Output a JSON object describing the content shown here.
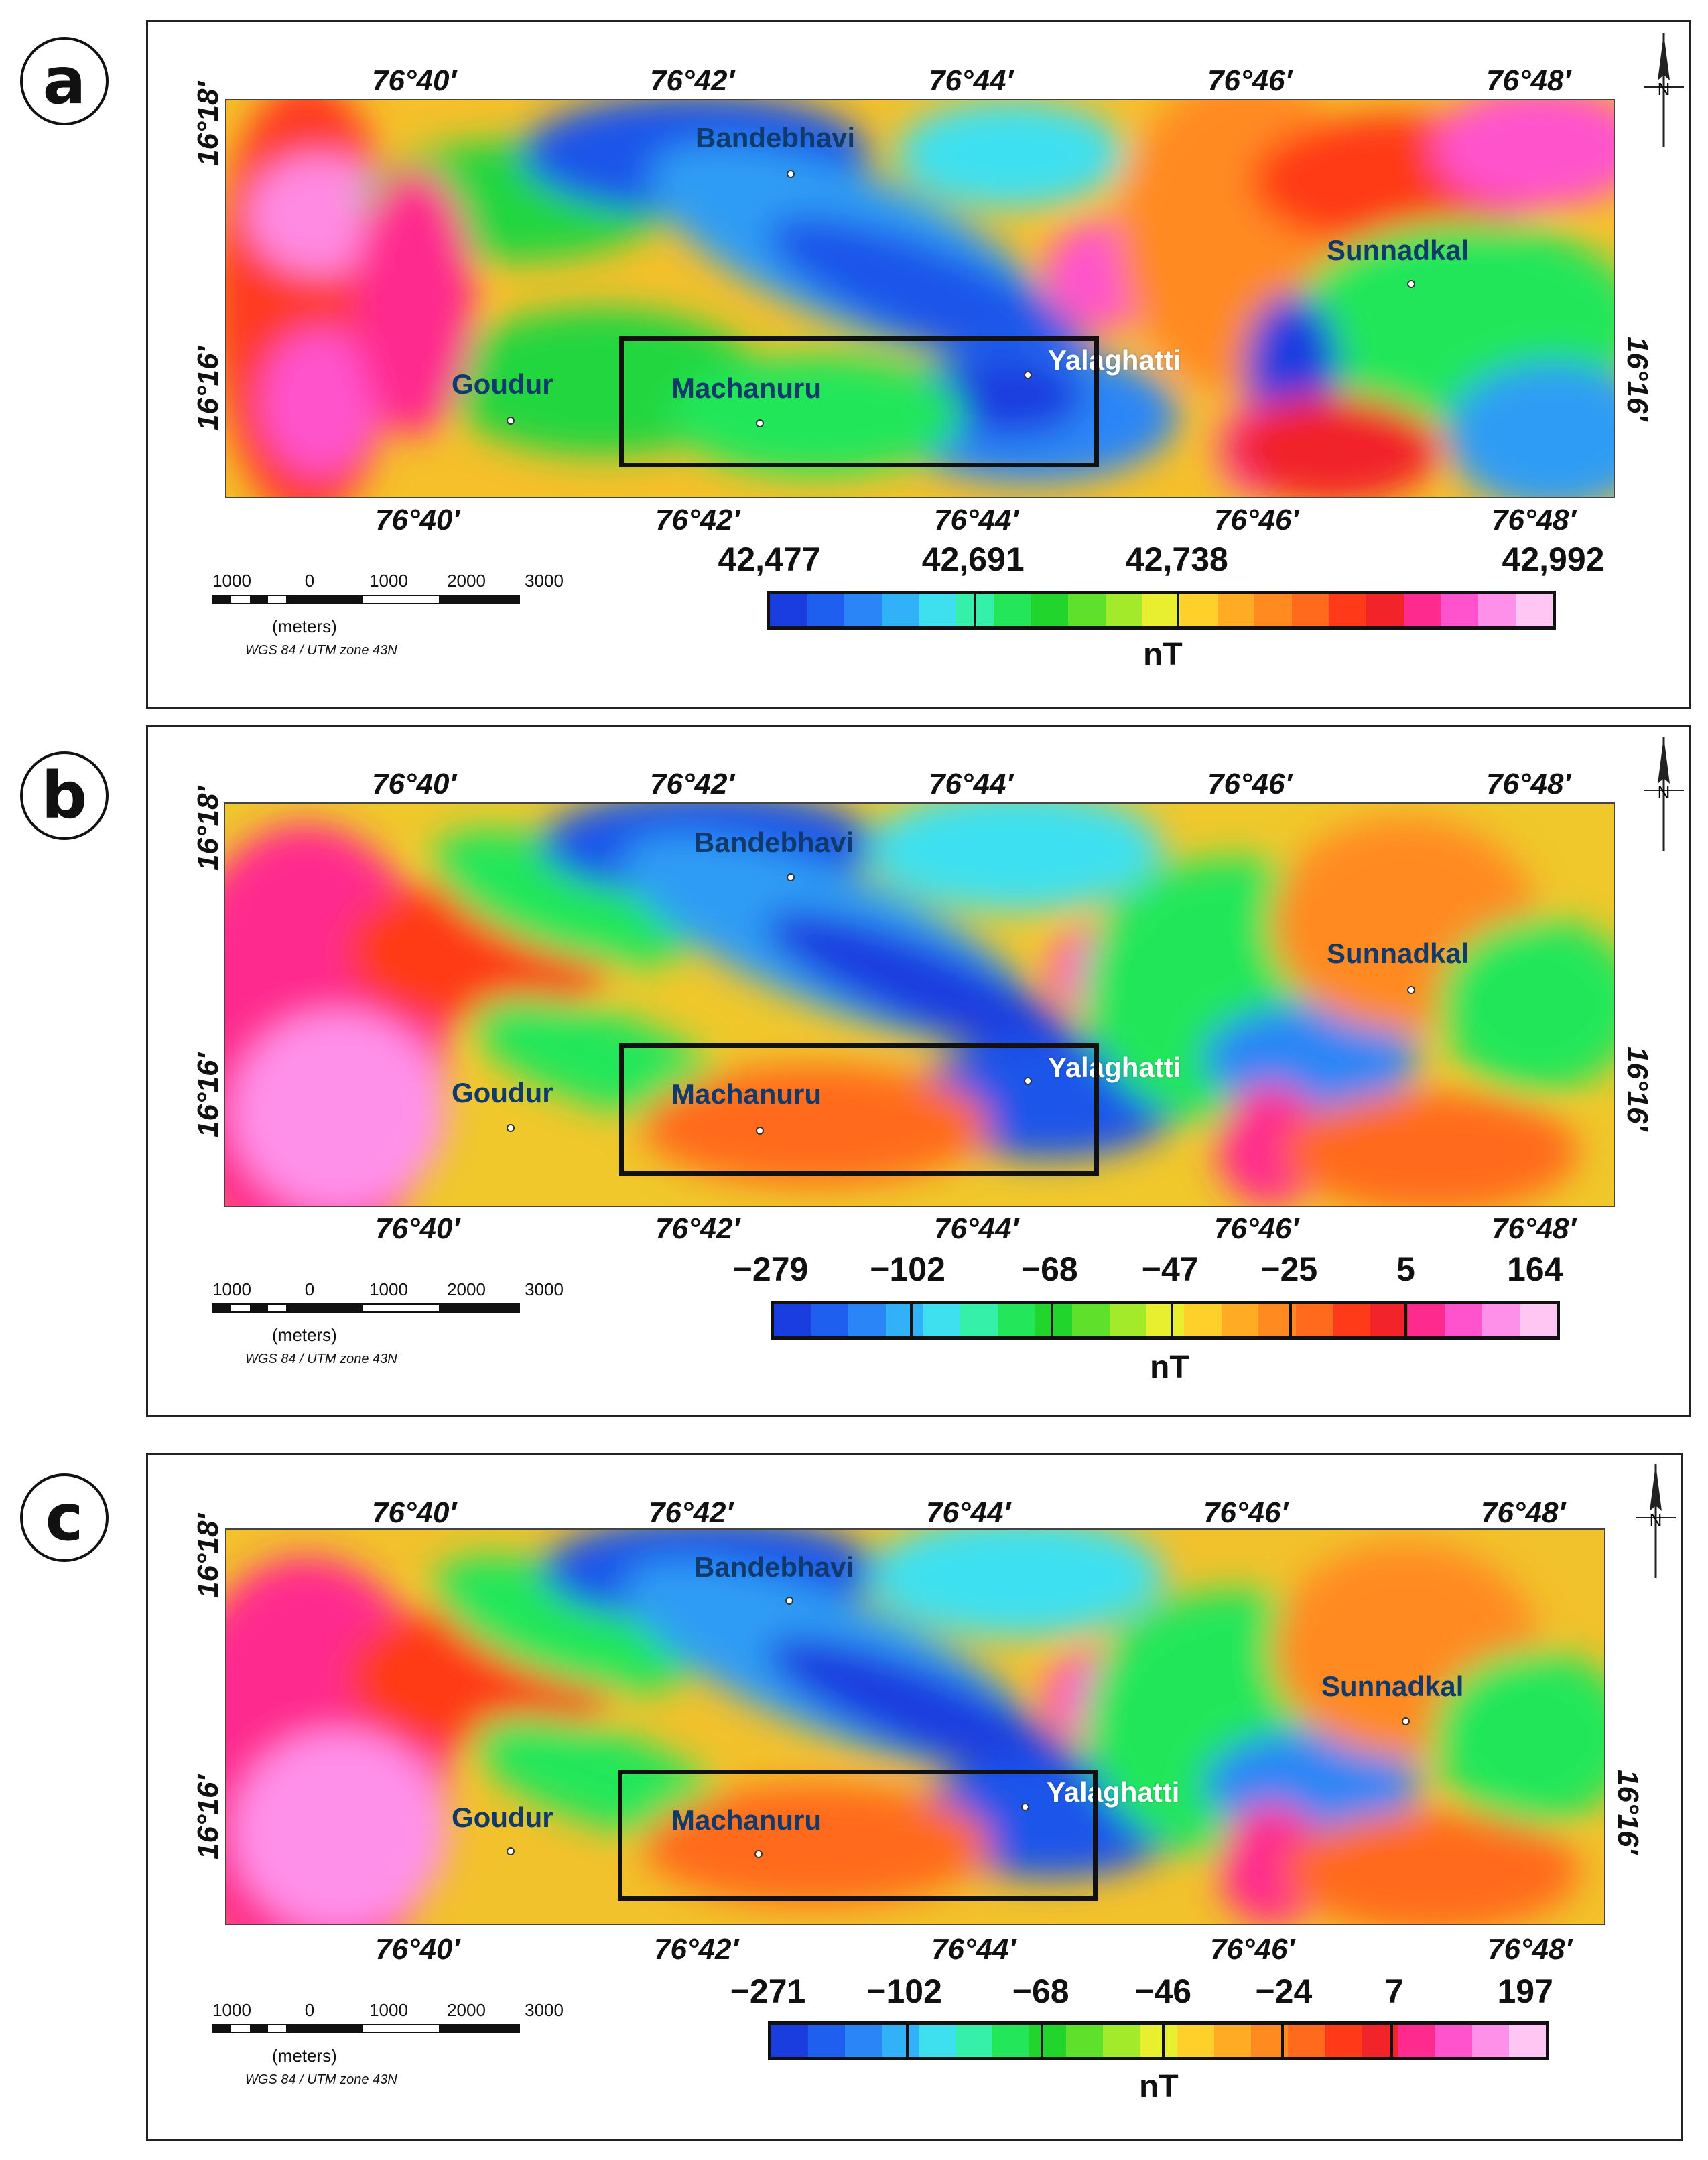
{
  "panels": [
    {
      "label": "a",
      "lon_ticks": [
        "76°40′",
        "76°42′",
        "76°44′",
        "76°46′",
        "76°48′"
      ],
      "lat_ticks": [
        "16°18′",
        "16°16′"
      ],
      "places": {
        "bandebhavi": "Bandebhavi",
        "sunnadkal": "Sunnadkal",
        "goudur": "Goudur",
        "machanuru": "Machanuru",
        "yalaghatti": "Yalaghatti"
      },
      "colorbar": {
        "labels": [
          "42,477",
          "42,691",
          "42,738",
          "42,992"
        ],
        "unit": "nT",
        "colors": [
          "#1a3de0",
          "#1e5ff0",
          "#2a86f6",
          "#31b2f8",
          "#3ee0f0",
          "#35f0a8",
          "#23e65a",
          "#21d52c",
          "#5fe02a",
          "#a3ea2a",
          "#e8ef2e",
          "#ffd02a",
          "#ffac24",
          "#ff8a20",
          "#ff6a1c",
          "#ff3a18",
          "#f2242a",
          "#ff2a8e",
          "#ff52cc",
          "#ff90ea",
          "#ffc6f4"
        ]
      }
    },
    {
      "label": "b",
      "lon_ticks": [
        "76°40′",
        "76°42′",
        "76°44′",
        "76°46′",
        "76°48′"
      ],
      "lat_ticks": [
        "16°18′",
        "16°16′"
      ],
      "places": {
        "bandebhavi": "Bandebhavi",
        "sunnadkal": "Sunnadkal",
        "goudur": "Goudur",
        "machanuru": "Machanuru",
        "yalaghatti": "Yalaghatti"
      },
      "colorbar": {
        "labels": [
          "−279",
          "−102",
          "−68",
          "−47",
          "−25",
          "5",
          "164"
        ],
        "unit": "nT",
        "colors": [
          "#1a3de0",
          "#1e5ff0",
          "#2a86f6",
          "#31b2f8",
          "#3ee0f0",
          "#35f0a8",
          "#23e65a",
          "#21d52c",
          "#5fe02a",
          "#a3ea2a",
          "#e8ef2e",
          "#ffd02a",
          "#ffac24",
          "#ff8a20",
          "#ff6a1c",
          "#ff3a18",
          "#f2242a",
          "#ff2a8e",
          "#ff52cc",
          "#ff90ea",
          "#ffc6f4"
        ]
      }
    },
    {
      "label": "c",
      "lon_ticks": [
        "76°40′",
        "76°42′",
        "76°44′",
        "76°46′",
        "76°48′"
      ],
      "lat_ticks": [
        "16°18′",
        "16°16′"
      ],
      "places": {
        "bandebhavi": "Bandebhavi",
        "sunnadkal": "Sunnadkal",
        "goudur": "Goudur",
        "machanuru": "Machanuru",
        "yalaghatti": "Yalaghatti"
      },
      "colorbar": {
        "labels": [
          "−271",
          "−102",
          "−68",
          "−46",
          "−24",
          "7",
          "197"
        ],
        "unit": "nT",
        "colors": [
          "#1a3de0",
          "#1e5ff0",
          "#2a86f6",
          "#31b2f8",
          "#3ee0f0",
          "#35f0a8",
          "#23e65a",
          "#21d52c",
          "#5fe02a",
          "#a3ea2a",
          "#e8ef2e",
          "#ffd02a",
          "#ffac24",
          "#ff8a20",
          "#ff6a1c",
          "#ff3a18",
          "#f2242a",
          "#ff2a8e",
          "#ff52cc",
          "#ff90ea",
          "#ffc6f4"
        ]
      }
    }
  ],
  "scale_bar": {
    "numbers": [
      "1000",
      "0",
      "1000",
      "2000",
      "3000"
    ],
    "units": "(meters)",
    "projection": "WGS 84 / UTM zone 43N"
  },
  "north_arrow": {
    "letter": "N"
  }
}
